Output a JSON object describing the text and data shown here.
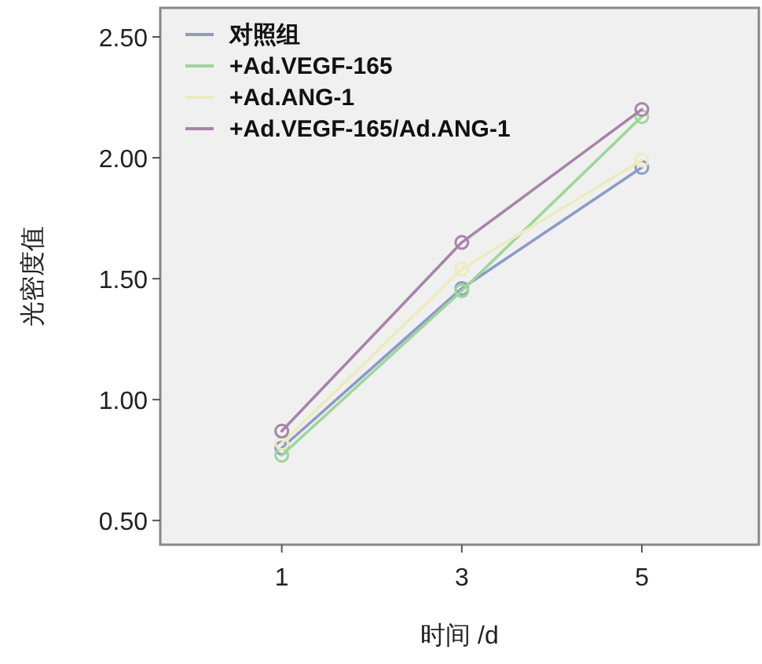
{
  "chart_data": {
    "type": "line",
    "xlabel": "时间 /d",
    "ylabel": "光密度值",
    "x": [
      1,
      3,
      5
    ],
    "series": [
      {
        "name": "对照组",
        "color": "#8e9ac8",
        "values": [
          0.8,
          1.46,
          1.96
        ]
      },
      {
        "name": "+Ad.VEGF-165",
        "color": "#9ed69a",
        "values": [
          0.77,
          1.45,
          2.17
        ]
      },
      {
        "name": "+Ad.ANG-1",
        "color": "#ecebbf",
        "values": [
          0.82,
          1.54,
          1.99
        ]
      },
      {
        "name": "+Ad.VEGF-165/Ad.ANG-1",
        "color": "#a684a9",
        "values": [
          0.87,
          1.65,
          2.2
        ]
      }
    ],
    "xlim": [
      -0.35,
      6.3
    ],
    "xticks": [
      1,
      3,
      5
    ],
    "ylim": [
      0.4,
      2.62
    ],
    "yticks": [
      {
        "value": 0.5,
        "label": "0.50"
      },
      {
        "value": 1.0,
        "label": "1.00"
      },
      {
        "value": 1.5,
        "label": "1.50"
      },
      {
        "value": 2.0,
        "label": "2.00"
      },
      {
        "value": 2.5,
        "label": "2.50"
      }
    ],
    "marker": "circle",
    "line_style": "solid",
    "grid": false,
    "legend": "top left"
  }
}
